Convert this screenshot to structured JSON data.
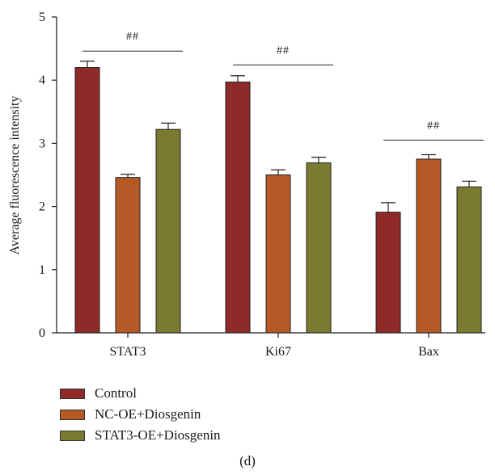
{
  "chart_data": {
    "type": "bar",
    "categories": [
      "STAT3",
      "Ki67",
      "Bax"
    ],
    "series": [
      {
        "name": "Control",
        "color": "#8e2a27",
        "values": [
          4.2,
          3.97,
          1.91
        ],
        "errors": [
          0.1,
          0.1,
          0.15
        ]
      },
      {
        "name": "NC-OE+Diosgenin",
        "color": "#b55a26",
        "values": [
          2.46,
          2.5,
          2.75
        ],
        "errors": [
          0.05,
          0.08,
          0.07
        ]
      },
      {
        "name": "STAT3-OE+Diosgenin",
        "color": "#7b7a31",
        "values": [
          3.22,
          2.69,
          2.31
        ],
        "errors": [
          0.1,
          0.09,
          0.09
        ]
      }
    ],
    "ylabel": "Average fluorescence intensity",
    "xlabel": "",
    "ylim": [
      0,
      5
    ],
    "yticks": [
      0,
      1,
      2,
      3,
      4,
      5
    ],
    "significance": [
      {
        "category": "STAT3",
        "label": "##",
        "y": 4.46
      },
      {
        "category": "Ki67",
        "label": "##",
        "y": 4.24
      },
      {
        "category": "Bax",
        "label": "##",
        "y": 3.05
      }
    ],
    "legend_position": "bottom-left",
    "caption": "(d)"
  }
}
